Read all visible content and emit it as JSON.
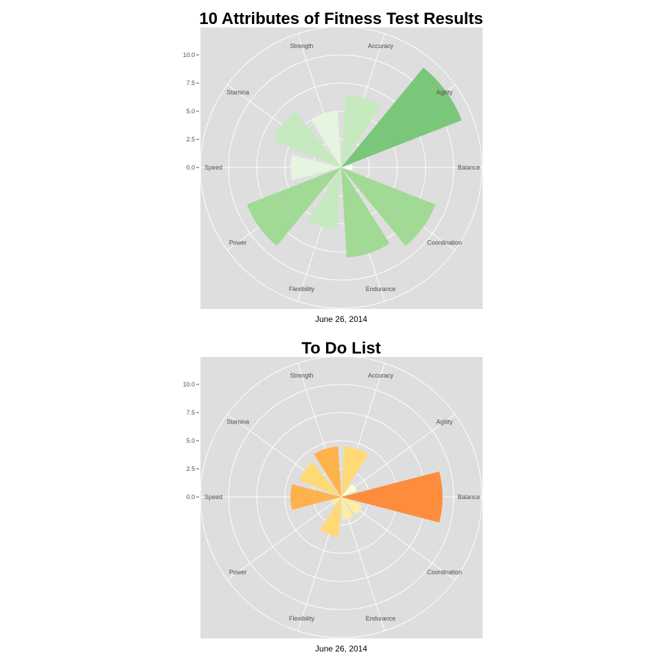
{
  "chart_data": [
    {
      "type": "polar-bar",
      "title": "10 Attributes of Fitness Test Results",
      "caption": "June 26, 2014",
      "rlim": [
        -2.5,
        10
      ],
      "rticks": [
        0.0,
        2.5,
        5.0,
        7.5,
        10.0
      ],
      "rtick_labels": [
        "0.0",
        "2.5",
        "5.0",
        "7.5",
        "10.0"
      ],
      "categories": [
        "Accuracy",
        "Agility",
        "Balance",
        "Coordination",
        "Endurance",
        "Flexibility",
        "Power",
        "Speed",
        "Stamina",
        "Strength"
      ],
      "values": [
        4.0,
        9.0,
        -1.5,
        6.5,
        5.5,
        3.0,
        6.5,
        2.0,
        4.0,
        2.5
      ],
      "fills": [
        "#c7e9c0",
        "#7bc77a",
        "#ffffff",
        "#a1da95",
        "#a1da95",
        "#c7e9c0",
        "#a1da95",
        "#e5f5e0",
        "#c7e9c0",
        "#e5f5e0"
      ]
    },
    {
      "type": "polar-bar",
      "title": "To Do List",
      "caption": "June 26, 2014",
      "rlim": [
        -2.5,
        10
      ],
      "rticks": [
        0.0,
        2.5,
        5.0,
        7.5,
        10.0
      ],
      "rtick_labels": [
        "0.0",
        "2.5",
        "5.0",
        "7.5",
        "10.0"
      ],
      "categories": [
        "Accuracy",
        "Agility",
        "Balance",
        "Coordination",
        "Endurance",
        "Flexibility",
        "Power",
        "Speed",
        "Stamina",
        "Strength"
      ],
      "values": [
        2.0,
        -1.0,
        6.5,
        -0.5,
        -0.5,
        1.0,
        -1.5,
        2.0,
        1.5,
        2.0
      ],
      "fills": [
        "#fed976",
        "#ffffcc",
        "#fd8d3c",
        "#ffeda0",
        "#ffeda0",
        "#fed976",
        "#ffeda0",
        "#feb24c",
        "#fed976",
        "#feb24c"
      ]
    }
  ]
}
